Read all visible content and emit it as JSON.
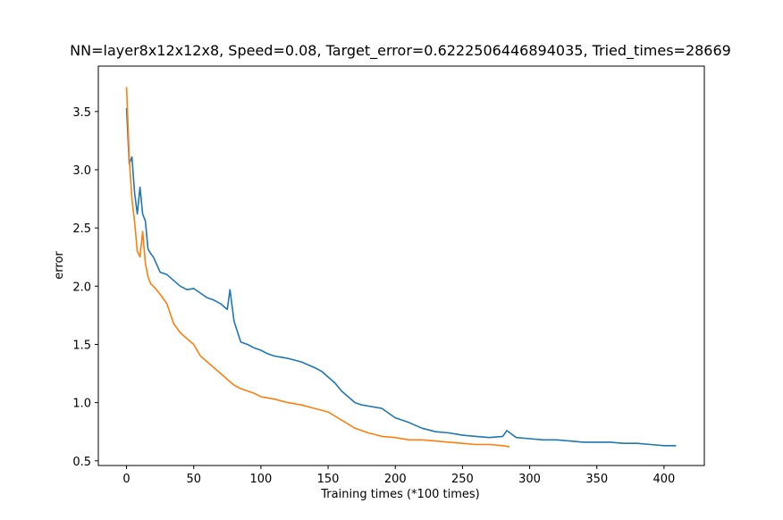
{
  "chart_data": {
    "type": "line",
    "title": "NN=layer8x12x12x8, Speed=0.08, Target_error=0.6222506446894035, Tried_times=28669",
    "xlabel": "Training times (*100 times)",
    "ylabel": "error",
    "xlim": [
      -21,
      430
    ],
    "ylim": [
      0.46,
      3.89
    ],
    "xticks": [
      0,
      50,
      100,
      150,
      200,
      250,
      300,
      350,
      400
    ],
    "yticks": [
      0.5,
      1.0,
      1.5,
      2.0,
      2.5,
      3.0,
      3.5
    ],
    "xtick_labels": [
      "0",
      "50",
      "100",
      "150",
      "200",
      "250",
      "300",
      "350",
      "400"
    ],
    "ytick_labels": [
      "0.5",
      "1.0",
      "1.5",
      "2.0",
      "2.5",
      "3.0",
      "3.5"
    ],
    "grid": false,
    "legend": "none",
    "series": [
      {
        "color": "#1f77b4",
        "x": [
          0,
          2,
          4,
          6,
          8,
          10,
          12,
          14,
          16,
          18,
          20,
          25,
          30,
          35,
          40,
          45,
          50,
          55,
          60,
          65,
          70,
          75,
          77,
          80,
          85,
          90,
          95,
          100,
          105,
          110,
          115,
          120,
          130,
          140,
          145,
          150,
          155,
          160,
          165,
          170,
          175,
          180,
          190,
          200,
          210,
          220,
          230,
          240,
          250,
          260,
          270,
          280,
          283,
          290,
          300,
          310,
          320,
          330,
          340,
          350,
          360,
          370,
          380,
          390,
          400,
          409
        ],
        "y": [
          3.53,
          3.05,
          3.11,
          2.8,
          2.62,
          2.85,
          2.62,
          2.56,
          2.32,
          2.28,
          2.25,
          2.12,
          2.1,
          2.05,
          2.0,
          1.97,
          1.98,
          1.94,
          1.9,
          1.88,
          1.85,
          1.8,
          1.97,
          1.7,
          1.52,
          1.5,
          1.47,
          1.45,
          1.42,
          1.4,
          1.39,
          1.38,
          1.35,
          1.3,
          1.27,
          1.22,
          1.17,
          1.1,
          1.05,
          1.0,
          0.98,
          0.97,
          0.95,
          0.87,
          0.83,
          0.78,
          0.75,
          0.74,
          0.72,
          0.71,
          0.7,
          0.71,
          0.76,
          0.7,
          0.69,
          0.68,
          0.68,
          0.67,
          0.66,
          0.66,
          0.66,
          0.65,
          0.65,
          0.64,
          0.63,
          0.63
        ]
      },
      {
        "color": "#ff7f0e",
        "x": [
          0,
          2,
          4,
          6,
          8,
          10,
          12,
          14,
          16,
          18,
          20,
          25,
          30,
          35,
          40,
          45,
          50,
          55,
          60,
          65,
          70,
          75,
          80,
          85,
          90,
          95,
          100,
          110,
          120,
          130,
          140,
          150,
          160,
          170,
          180,
          190,
          200,
          210,
          220,
          230,
          240,
          250,
          260,
          270,
          280,
          285
        ],
        "y": [
          3.71,
          3.1,
          2.75,
          2.55,
          2.3,
          2.25,
          2.47,
          2.2,
          2.08,
          2.02,
          2.0,
          1.93,
          1.85,
          1.68,
          1.6,
          1.55,
          1.5,
          1.4,
          1.35,
          1.3,
          1.25,
          1.2,
          1.15,
          1.12,
          1.1,
          1.08,
          1.05,
          1.03,
          1.0,
          0.98,
          0.95,
          0.92,
          0.85,
          0.78,
          0.74,
          0.71,
          0.7,
          0.68,
          0.68,
          0.67,
          0.66,
          0.65,
          0.64,
          0.64,
          0.63,
          0.62
        ]
      }
    ]
  }
}
